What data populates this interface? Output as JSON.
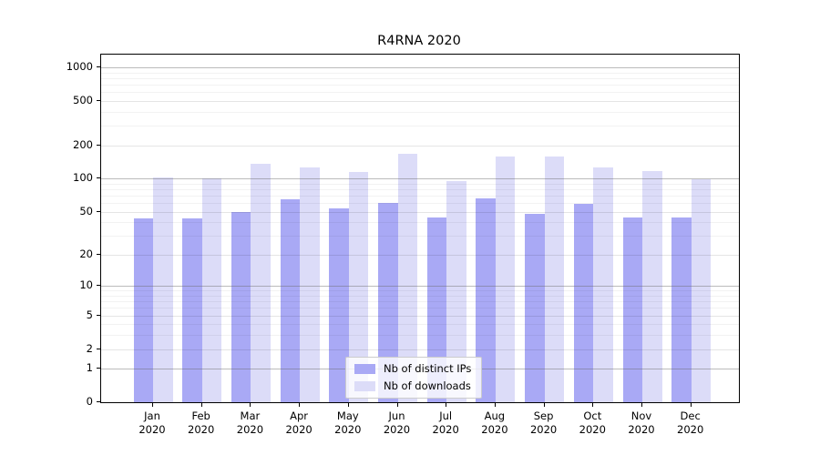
{
  "page": {
    "background": "#ffffff"
  },
  "chart_data": {
    "type": "bar",
    "title": "R4RNA 2020",
    "categories": [
      "Jan",
      "Feb",
      "Mar",
      "Apr",
      "May",
      "Jun",
      "Jul",
      "Aug",
      "Sep",
      "Oct",
      "Nov",
      "Dec"
    ],
    "category_year": "2020",
    "series": [
      {
        "name": "Nb of distinct IPs",
        "color": "#a9a9f5",
        "values": [
          43,
          43,
          50,
          65,
          54,
          60,
          44,
          66,
          48,
          59,
          44,
          44
        ]
      },
      {
        "name": "Nb of downloads",
        "color": "#dcdcf8",
        "values": [
          102,
          101,
          136,
          125,
          114,
          167,
          95,
          159,
          159,
          127,
          116,
          98
        ]
      }
    ],
    "yscale": "log1p",
    "ylim": [
      0,
      1300
    ],
    "yticks": [
      0,
      1,
      2,
      5,
      10,
      20,
      50,
      100,
      200,
      500,
      1000
    ],
    "grid": true,
    "legend_position": "bottom-center-inside",
    "axis_color": "#000000",
    "gridline_major_color": "#b3b3b3",
    "gridline_minor_color": "#ededed"
  }
}
